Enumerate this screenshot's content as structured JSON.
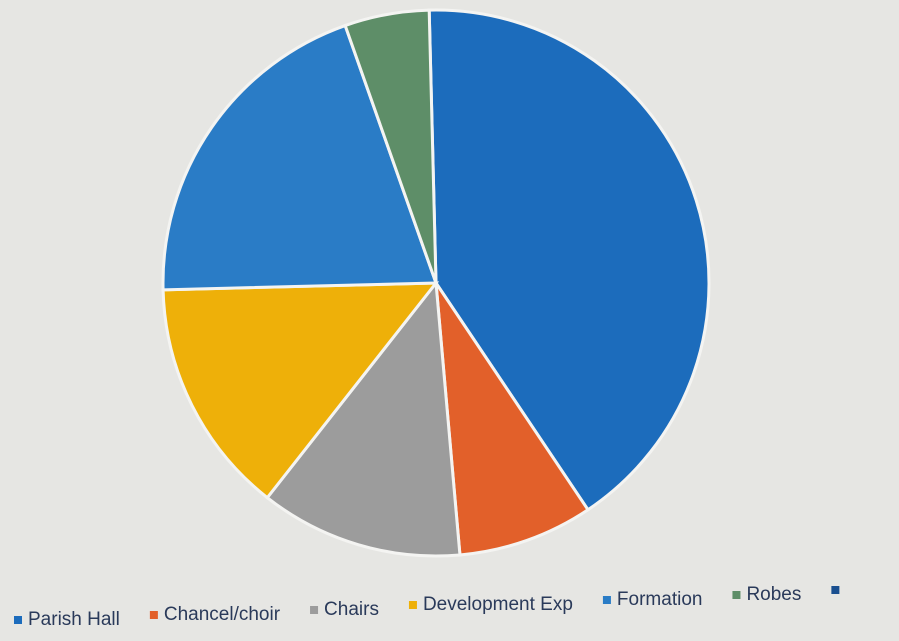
{
  "chart_data": {
    "type": "pie",
    "categories": [
      "Parish Hall",
      "Chancel/choir",
      "Chairs",
      "Development Exp",
      "Formation",
      "Robes"
    ],
    "values": [
      41,
      8,
      12,
      14,
      20,
      5
    ],
    "colors": [
      "#1c6cbc",
      "#e2602a",
      "#9c9c9c",
      "#eeb009",
      "#2a7cc6",
      "#5e8e68"
    ],
    "legend": "bottom"
  }
}
